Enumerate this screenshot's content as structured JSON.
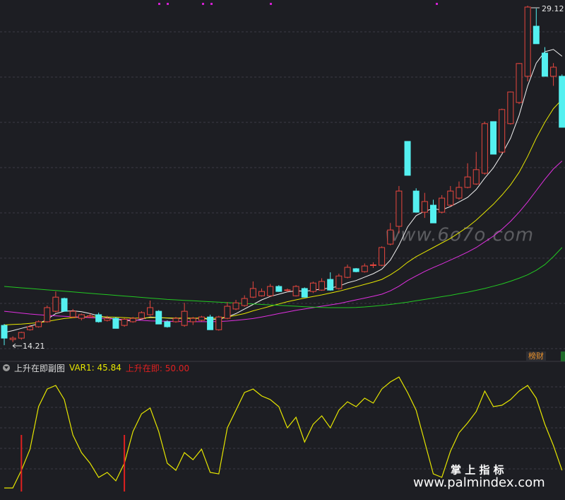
{
  "chart_data": [
    {
      "type": "candlestick",
      "open": [
        15.08,
        14.46,
        14.52,
        14.89,
        15.02,
        15.24,
        15.7,
        16.26,
        15.45,
        15.39,
        15.45,
        15.55,
        15.3,
        15.39,
        15.08,
        15.24,
        15.39,
        15.55,
        15.7,
        15.24,
        15.24,
        15.08,
        15.24,
        15.3,
        15.45,
        14.89,
        15.39,
        15.8,
        15.95,
        16.32,
        16.38,
        16.38,
        16.79,
        16.63,
        16.38,
        16.7,
        16.57,
        16.63,
        17.1,
        16.7,
        17.19,
        17.57,
        17.44,
        17.72,
        17.72,
        18.65,
        19.43,
        23.16,
        20.98,
        20.05,
        20.36,
        20.05,
        20.36,
        20.67,
        21.14,
        21.29,
        21.76,
        24.03,
        22.69,
        23.94,
        24.87,
        26.02,
        28.22,
        27.04,
        26.02,
        26.02
      ],
      "high": [
        15.14,
        14.6,
        14.8,
        15.1,
        15.3,
        15.95,
        16.57,
        16.3,
        15.8,
        15.6,
        15.6,
        15.64,
        15.5,
        15.45,
        15.4,
        15.45,
        15.7,
        16.17,
        15.75,
        15.3,
        15.45,
        16.07,
        15.45,
        15.5,
        15.55,
        15.5,
        16.1,
        16.2,
        16.4,
        17.01,
        16.7,
        16.9,
        16.85,
        16.7,
        16.85,
        16.75,
        17.0,
        17.15,
        17.41,
        17.35,
        17.75,
        17.6,
        17.8,
        17.85,
        18.55,
        19.58,
        21.2,
        23.16,
        21.1,
        20.9,
        20.6,
        20.8,
        21.2,
        21.4,
        22.2,
        22.7,
        24.03,
        24.03,
        24.6,
        25.35,
        26.6,
        29.12,
        29.0,
        27.3,
        26.6,
        26.1
      ],
      "low": [
        14.21,
        14.35,
        14.45,
        14.85,
        14.98,
        15.2,
        15.64,
        15.7,
        15.4,
        15.3,
        15.4,
        15.2,
        15.25,
        14.95,
        15.02,
        15.2,
        15.35,
        15.5,
        15.14,
        14.98,
        15.2,
        15.02,
        15.1,
        15.25,
        14.89,
        14.85,
        15.35,
        15.75,
        15.9,
        16.28,
        16.35,
        16.35,
        16.55,
        16.55,
        16.35,
        16.32,
        16.5,
        16.6,
        16.6,
        16.65,
        17.15,
        17.41,
        17.4,
        17.6,
        17.68,
        18.6,
        19.12,
        21.67,
        20.05,
        19.8,
        19.58,
        20.0,
        20.3,
        20.6,
        21.1,
        21.25,
        21.7,
        22.6,
        22.65,
        23.9,
        24.8,
        25.8,
        27.45,
        26.02,
        25.6,
        23.78
      ],
      "close": [
        14.52,
        14.52,
        14.77,
        15.02,
        15.24,
        15.86,
        16.32,
        15.7,
        15.7,
        15.55,
        15.5,
        15.24,
        15.39,
        14.95,
        15.35,
        15.39,
        15.64,
        15.86,
        15.14,
        15.02,
        15.39,
        15.7,
        15.39,
        15.45,
        14.89,
        15.45,
        15.92,
        16.07,
        16.26,
        16.7,
        16.57,
        16.79,
        16.57,
        16.64,
        16.79,
        16.32,
        16.94,
        17.01,
        16.63,
        17.25,
        17.63,
        17.44,
        17.69,
        17.74,
        18.5,
        19.27,
        20.98,
        21.67,
        20.05,
        20.52,
        19.58,
        20.67,
        20.98,
        21.14,
        21.6,
        21.92,
        23.94,
        22.6,
        24.56,
        25.33,
        26.58,
        29.06,
        27.45,
        26.02,
        26.42,
        23.78
      ],
      "up_color": "#e8463e",
      "down_color": "#54f0f0",
      "ma": [
        {
          "color": "#f2f2f2",
          "values": [
            14.77,
            14.85,
            14.95,
            15.05,
            15.15,
            15.35,
            15.6,
            15.7,
            15.72,
            15.68,
            15.6,
            15.5,
            15.42,
            15.35,
            15.3,
            15.28,
            15.35,
            15.45,
            15.42,
            15.4,
            15.38,
            15.4,
            15.38,
            15.4,
            15.33,
            15.35,
            15.45,
            15.6,
            15.8,
            16.0,
            16.2,
            16.35,
            16.45,
            16.55,
            16.6,
            16.58,
            16.62,
            16.68,
            16.72,
            16.8,
            16.95,
            17.05,
            17.2,
            17.35,
            17.55,
            17.95,
            18.6,
            19.4,
            19.9,
            20.1,
            20.2,
            20.15,
            20.3,
            20.5,
            20.7,
            21.05,
            21.55,
            22.0,
            22.6,
            23.3,
            24.3,
            25.6,
            26.6,
            27.1,
            27.2,
            26.9
          ]
        },
        {
          "color": "#e6e600",
          "values": [
            15.1,
            15.12,
            15.14,
            15.17,
            15.2,
            15.25,
            15.32,
            15.38,
            15.42,
            15.45,
            15.46,
            15.46,
            15.45,
            15.44,
            15.42,
            15.4,
            15.4,
            15.42,
            15.42,
            15.41,
            15.4,
            15.4,
            15.4,
            15.4,
            15.38,
            15.4,
            15.45,
            15.52,
            15.6,
            15.72,
            15.82,
            15.92,
            16.02,
            16.12,
            16.2,
            16.28,
            16.35,
            16.42,
            16.5,
            16.58,
            16.68,
            16.78,
            16.88,
            16.98,
            17.1,
            17.3,
            17.55,
            17.85,
            18.1,
            18.3,
            18.5,
            18.7,
            18.9,
            19.15,
            19.4,
            19.7,
            20.05,
            20.4,
            20.8,
            21.25,
            21.8,
            22.5,
            23.3,
            24.0,
            24.6,
            25.0
          ]
        },
        {
          "color": "#e030e0",
          "values": [
            15.7,
            15.66,
            15.62,
            15.58,
            15.55,
            15.52,
            15.5,
            15.48,
            15.46,
            15.44,
            15.42,
            15.4,
            15.38,
            15.36,
            15.34,
            15.32,
            15.3,
            15.28,
            15.27,
            15.26,
            15.25,
            15.25,
            15.24,
            15.24,
            15.24,
            15.25,
            15.27,
            15.3,
            15.34,
            15.38,
            15.45,
            15.52,
            15.6,
            15.67,
            15.74,
            15.8,
            15.86,
            15.92,
            15.98,
            16.04,
            16.12,
            16.2,
            16.28,
            16.36,
            16.45,
            16.6,
            16.8,
            17.05,
            17.25,
            17.45,
            17.62,
            17.78,
            17.95,
            18.12,
            18.3,
            18.5,
            18.75,
            19.0,
            19.3,
            19.65,
            20.05,
            20.5,
            21.0,
            21.5,
            21.95,
            22.3
          ]
        },
        {
          "color": "#22c822",
          "values": [
            16.79,
            16.76,
            16.73,
            16.7,
            16.67,
            16.64,
            16.61,
            16.58,
            16.55,
            16.52,
            16.49,
            16.46,
            16.43,
            16.4,
            16.37,
            16.34,
            16.31,
            16.28,
            16.25,
            16.22,
            16.2,
            16.18,
            16.16,
            16.14,
            16.12,
            16.1,
            16.08,
            16.06,
            16.04,
            16.02,
            16.0,
            15.98,
            15.96,
            15.94,
            15.92,
            15.9,
            15.88,
            15.87,
            15.86,
            15.86,
            15.86,
            15.87,
            15.89,
            15.92,
            15.96,
            16.0,
            16.05,
            16.1,
            16.16,
            16.22,
            16.28,
            16.34,
            16.4,
            16.47,
            16.54,
            16.62,
            16.7,
            16.8,
            16.9,
            17.02,
            17.15,
            17.3,
            17.5,
            17.75,
            18.1,
            18.5
          ]
        }
      ],
      "ylim": [
        13.53,
        29.37
      ],
      "high_label": 29.12,
      "low_label": 14.21
    },
    {
      "type": "line",
      "title": "上升在即副图",
      "series": [
        {
          "color": "#e6e600",
          "values": [
            5.9,
            5.9,
            20.6,
            38.2,
            73.5,
            88.2,
            91.2,
            79.4,
            50.0,
            35.3,
            26.5,
            14.7,
            18.8,
            11.8,
            26.5,
            52.9,
            67.6,
            72.4,
            52.9,
            26.5,
            20.6,
            35.3,
            29.4,
            38.2,
            18.8,
            17.6,
            55.9,
            70.6,
            85.3,
            88.2,
            82.4,
            79.4,
            73.5,
            55.9,
            64.7,
            44.1,
            58.8,
            65.9,
            55.9,
            70.6,
            77.6,
            73.5,
            80.6,
            76.5,
            88.2,
            94.1,
            98.2,
            85.3,
            70.6,
            44.1,
            17.6,
            14.7,
            36.5,
            51.8,
            60.0,
            69.4,
            86.5,
            73.5,
            74.7,
            79.4,
            86.5,
            91.2,
            80.6,
            58.8,
            41.2,
            20.6
          ]
        },
        {
          "color": "#e02020",
          "kind": "bar",
          "values": [
            null,
            null,
            50,
            null,
            null,
            null,
            null,
            null,
            null,
            null,
            null,
            null,
            null,
            null,
            50,
            null,
            null,
            null,
            null,
            null,
            null,
            null,
            null,
            null,
            null,
            null,
            null,
            null,
            null,
            null,
            null,
            null,
            null,
            null,
            null,
            null,
            null,
            null,
            null,
            null,
            null,
            null,
            null,
            null,
            null,
            null,
            null,
            null,
            null,
            null,
            null,
            null,
            null,
            null,
            null,
            null,
            null,
            null,
            null,
            null,
            null,
            null,
            null,
            null,
            null,
            null
          ]
        }
      ],
      "readouts": [
        {
          "label": "VAR1:",
          "value": 45.84,
          "color": "#e6e600"
        },
        {
          "label": "上升在即:",
          "value": {
            "value": 50,
            "label": "50.00"
          },
          "color": "#e02020"
        }
      ],
      "ylim": [
        0,
        100
      ]
    }
  ],
  "overlay": {
    "watermark": "www.6o7o.com",
    "brand": "掌 上 指 标",
    "site": "www.palmindex.com",
    "tab": "榜财"
  }
}
